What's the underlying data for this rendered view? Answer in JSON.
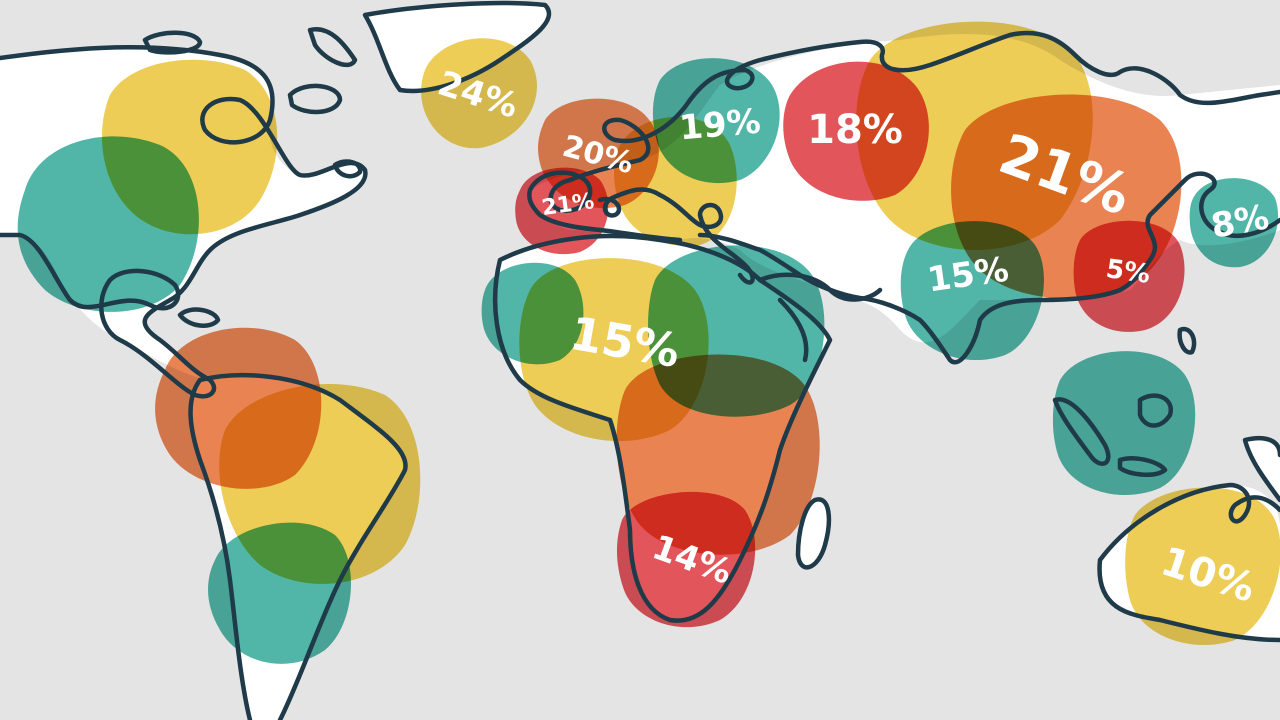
{
  "colors": {
    "background": "#e4e4e4",
    "land": "#ffffff",
    "coastline": "#1f3a48",
    "yellow": "#e9c230",
    "teal": "#2aa595",
    "orange": "#e4692c",
    "red": "#dc2f36",
    "label": "#ffffff"
  },
  "regions": [
    {
      "id": "greenland",
      "label": "24%",
      "value": 24,
      "color": "yellow"
    },
    {
      "id": "west-europe",
      "label": "20%",
      "value": 20,
      "color": "orange"
    },
    {
      "id": "iberia",
      "label": "21%",
      "value": 21,
      "color": "red"
    },
    {
      "id": "scandinavia",
      "label": "19%",
      "value": 19,
      "color": "teal"
    },
    {
      "id": "west-russia",
      "label": "18%",
      "value": 18,
      "color": "red"
    },
    {
      "id": "central-asia",
      "label": "21%",
      "value": 21,
      "color": "orange"
    },
    {
      "id": "japan",
      "label": "8%",
      "value": 8,
      "color": "teal"
    },
    {
      "id": "south-asia",
      "label": "15%",
      "value": 15,
      "color": "teal"
    },
    {
      "id": "east-asia",
      "label": "5%",
      "value": 5,
      "color": "red"
    },
    {
      "id": "north-africa",
      "label": "15%",
      "value": 15,
      "color": "yellow"
    },
    {
      "id": "southern-africa",
      "label": "14%",
      "value": 14,
      "color": "red"
    },
    {
      "id": "australia",
      "label": "10%",
      "value": 10,
      "color": "yellow"
    }
  ],
  "unlabeled_blobs": [
    {
      "id": "canada",
      "color": "yellow"
    },
    {
      "id": "alaska",
      "color": "teal"
    },
    {
      "id": "central-america",
      "color": "orange"
    },
    {
      "id": "brazil",
      "color": "yellow"
    },
    {
      "id": "patagonia",
      "color": "teal"
    },
    {
      "id": "west-africa",
      "color": "teal"
    },
    {
      "id": "east-africa",
      "color": "teal"
    },
    {
      "id": "central-africa",
      "color": "orange"
    },
    {
      "id": "eastern-europe",
      "color": "yellow"
    },
    {
      "id": "siberia",
      "color": "yellow"
    },
    {
      "id": "southeast-asia",
      "color": "teal"
    }
  ]
}
